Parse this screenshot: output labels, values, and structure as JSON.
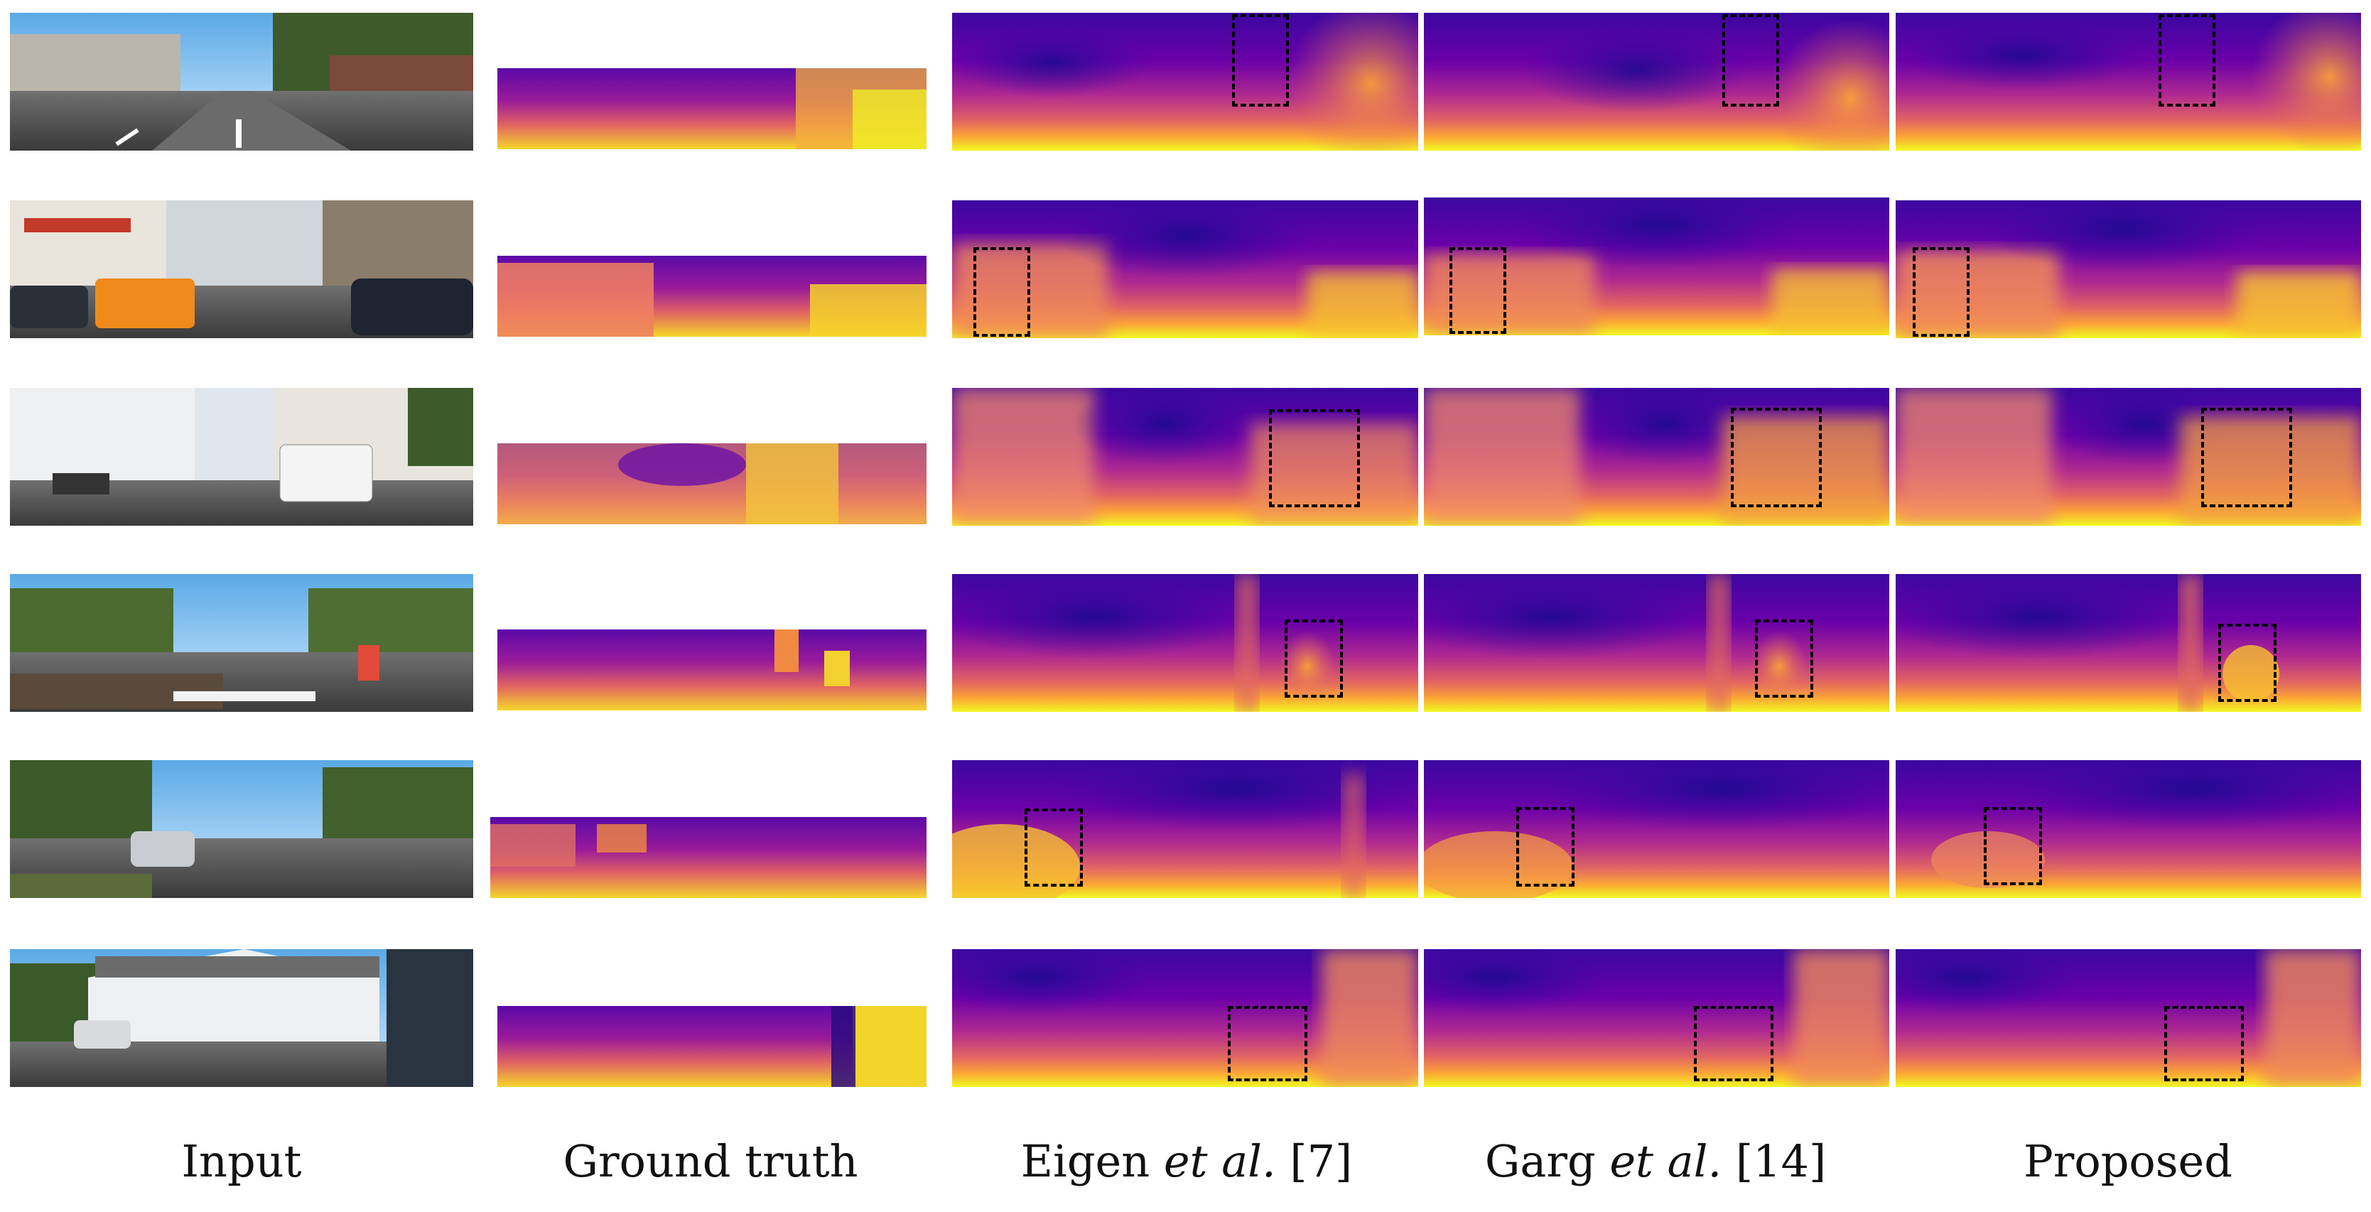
{
  "columns": [
    {
      "id": "input",
      "label": "Input"
    },
    {
      "id": "ground_truth",
      "label": "Ground truth"
    },
    {
      "id": "eigen",
      "label_pre": "Eigen ",
      "label_em": "et al.",
      "label_post": " [7]"
    },
    {
      "id": "garg",
      "label_pre": "Garg ",
      "label_em": "et al.",
      "label_post": " [14]"
    },
    {
      "id": "proposed",
      "label": "Proposed"
    }
  ],
  "rows": 6,
  "colormap": [
    "#0d0887",
    "#6a00a8",
    "#b12a90",
    "#e16462",
    "#fca636",
    "#f0f921"
  ]
}
